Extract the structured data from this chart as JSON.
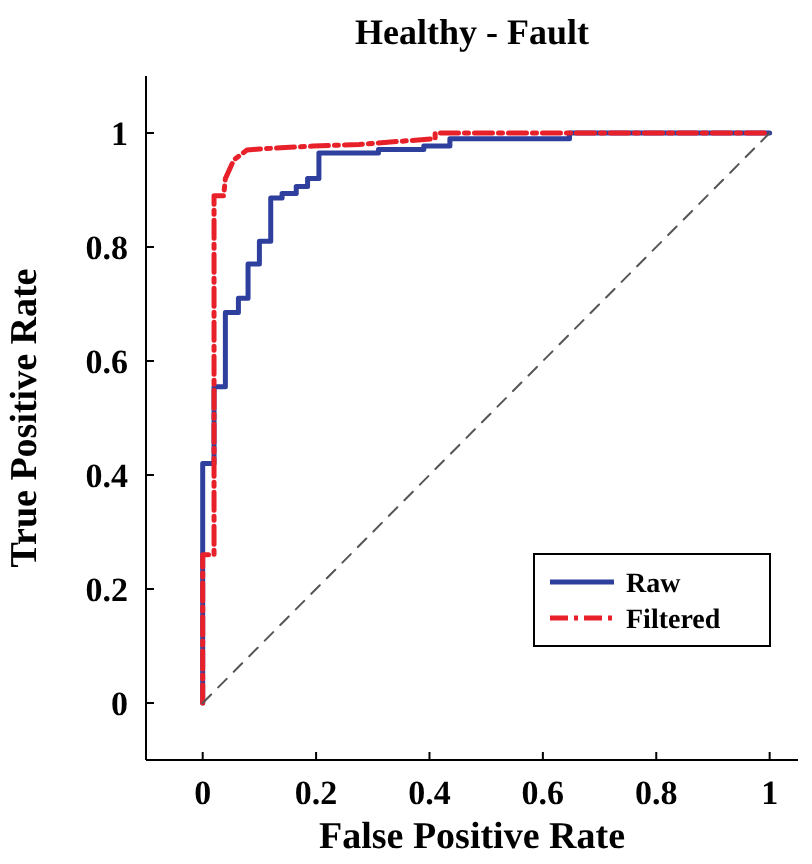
{
  "chart_data": {
    "type": "line",
    "title": "Healthy - Fault",
    "xlabel": "False Positive Rate",
    "ylabel": "True Positive Rate",
    "xlim": [
      -0.1,
      1.05
    ],
    "ylim": [
      -0.1,
      1.1
    ],
    "xticks": [
      0,
      0.2,
      0.4,
      0.6,
      0.8,
      1
    ],
    "yticks": [
      0,
      0.2,
      0.4,
      0.6,
      0.8,
      1
    ],
    "grid": false,
    "legend": "bottom right",
    "marker": "none",
    "series": [
      {
        "name": "Raw",
        "color": "#2e3f9e",
        "line_style": "solid",
        "x": [
          0,
          0,
          0.02,
          0.02,
          0.04,
          0.04,
          0.063,
          0.063,
          0.08,
          0.08,
          0.1,
          0.1,
          0.12,
          0.12,
          0.14,
          0.14,
          0.165,
          0.165,
          0.185,
          0.185,
          0.205,
          0.205,
          0.31,
          0.31,
          0.39,
          0.39,
          0.436,
          0.436,
          0.647,
          0.647,
          1
        ],
        "values": [
          0,
          0.42,
          0.42,
          0.555,
          0.555,
          0.685,
          0.685,
          0.71,
          0.71,
          0.77,
          0.77,
          0.81,
          0.81,
          0.886,
          0.886,
          0.894,
          0.894,
          0.906,
          0.906,
          0.92,
          0.92,
          0.965,
          0.965,
          0.971,
          0.971,
          0.977,
          0.977,
          0.99,
          0.99,
          1,
          1
        ]
      },
      {
        "name": "Filtered",
        "color": "#e8202a",
        "line_style": "dashed",
        "x": [
          0,
          0,
          0.02,
          0.02,
          0.037,
          0.04,
          0.055,
          0.078,
          0.1,
          0.195,
          0.276,
          0.41,
          0.41,
          1
        ],
        "values": [
          0,
          0.26,
          0.26,
          0.89,
          0.89,
          0.92,
          0.953,
          0.97,
          0.972,
          0.977,
          0.98,
          0.99,
          1,
          1
        ]
      },
      {
        "color": "#555555",
        "line_style": "dashed",
        "x": [
          0,
          1
        ],
        "values": [
          0,
          1
        ]
      }
    ]
  }
}
